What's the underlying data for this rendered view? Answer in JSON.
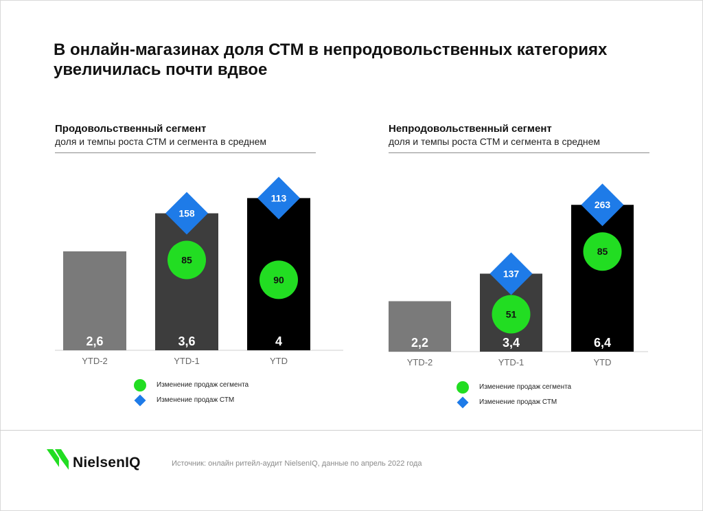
{
  "title": "В онлайн-магазинах доля СТМ в непродовольственных категориях увеличилась почти вдвое",
  "colors": {
    "bar_ytd2": "#7a7a7a",
    "bar_ytd1": "#3d3d3d",
    "bar_ytd": "#000000",
    "segment_marker": "#22dd22",
    "stm_marker": "#1e7be8",
    "logo_green": "#22dd22"
  },
  "legend": {
    "segment": "Изменение продаж сегмента",
    "stm": "Изменение продаж СТМ"
  },
  "chart_data": [
    {
      "type": "bar",
      "title": "Продовольственный сегмент",
      "subtitle": "доля и темпы роста СТМ и сегмента в среднем",
      "categories": [
        "YTD-2",
        "YTD-1",
        "YTD"
      ],
      "values": [
        2.6,
        3.6,
        4
      ],
      "value_labels": [
        "2,6",
        "3,6",
        "4"
      ],
      "segment_change": [
        null,
        85,
        90
      ],
      "stm_change": [
        null,
        158,
        113
      ],
      "legend_placement": "bottom",
      "grid": false
    },
    {
      "type": "bar",
      "title": "Непродовольственный сегмент",
      "subtitle": "доля и темпы роста СТМ и сегмента в среднем",
      "categories": [
        "YTD-2",
        "YTD-1",
        "YTD"
      ],
      "values": [
        2.2,
        3.4,
        6.4
      ],
      "value_labels": [
        "2,2",
        "3,4",
        "6,4"
      ],
      "segment_change": [
        null,
        51,
        85
      ],
      "stm_change": [
        null,
        137,
        263
      ],
      "legend_placement": "bottom",
      "grid": false
    }
  ],
  "footer": {
    "logo": "NielsenIQ",
    "source": "Источник: онлайн ритейл-аудит NielsenIQ, данные по апрель 2022 года"
  }
}
